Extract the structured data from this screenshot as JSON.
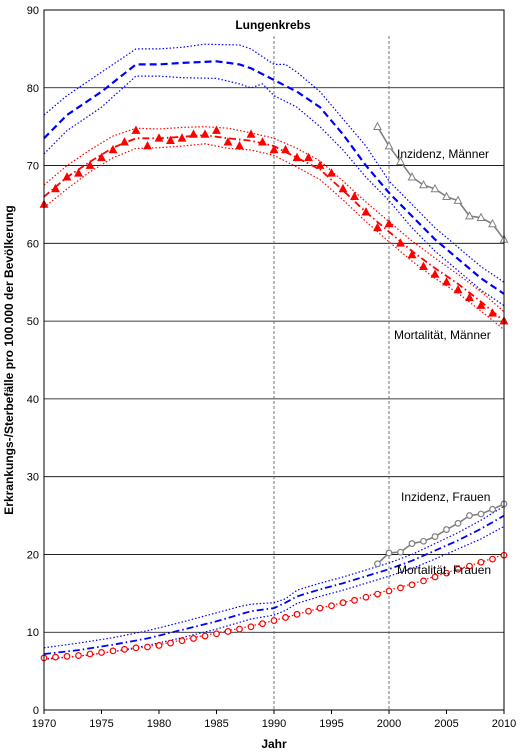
{
  "chart_data": {
    "type": "line",
    "title": "Lungenkrebs",
    "xlabel": "Jahr",
    "ylabel": "Erkrankungs-/Sterbefälle pro 100.000 der Bevölkerung",
    "xlim": [
      1970,
      2010
    ],
    "ylim": [
      0,
      90
    ],
    "xticks": [
      1970,
      1975,
      1980,
      1985,
      1990,
      1995,
      2000,
      2005,
      2010
    ],
    "yticks": [
      0,
      10,
      20,
      30,
      40,
      50,
      60,
      70,
      80,
      90
    ],
    "grid": "horizontal",
    "reference_lines_x": [
      1990,
      2000
    ],
    "annotations": [
      {
        "text": "Inzidenz, Männer"
      },
      {
        "text": "Mortalität, Männer"
      },
      {
        "text": "Inzidenz, Frauen"
      },
      {
        "text": "Mortalität, Frauen"
      }
    ],
    "series": [
      {
        "color": "#0000ff",
        "style": "dashed",
        "role": "trend",
        "x": [
          1970,
          1972,
          1975,
          1978,
          1980,
          1982,
          1985,
          1987,
          1988,
          1990,
          1992,
          1994,
          1996,
          1998,
          2000,
          2002,
          2004,
          2006,
          2008,
          2010
        ],
        "values": [
          73.5,
          76.5,
          79.5,
          83,
          83,
          83.2,
          83.4,
          83,
          82.5,
          81,
          79.5,
          77.5,
          74,
          70,
          66.5,
          63.5,
          60.5,
          58,
          55.5,
          53.5
        ]
      },
      {
        "color": "#0000ff",
        "style": "dotted",
        "role": "upper band",
        "x": [
          1970,
          1972,
          1975,
          1978,
          1980,
          1982,
          1984,
          1987,
          1988,
          1990,
          1991,
          1992,
          1994,
          1996,
          1998,
          2000,
          2002,
          2004,
          2006,
          2008,
          2010
        ],
        "values": [
          76.5,
          79,
          82,
          85,
          85,
          85.2,
          85.6,
          85.5,
          85,
          83,
          83,
          82,
          79.5,
          76,
          72.5,
          68,
          65,
          62,
          59.5,
          57,
          55
        ]
      },
      {
        "color": "#0000ff",
        "style": "dotted",
        "role": "lower band",
        "x": [
          1970,
          1972,
          1975,
          1978,
          1980,
          1982,
          1985,
          1987,
          1988,
          1989,
          1990,
          1992,
          1994,
          1996,
          1998,
          2000,
          2002,
          2004,
          2006,
          2008,
          2010
        ],
        "values": [
          71.5,
          74.5,
          77.5,
          81.5,
          81.5,
          81.3,
          81.2,
          80.5,
          80,
          80.5,
          79,
          77.5,
          75,
          72,
          68.5,
          65.5,
          62,
          59,
          56.5,
          54,
          52
        ]
      },
      {
        "color": "#ff0000",
        "style": "dash-dot",
        "role": "trend",
        "x": [
          1970,
          1972,
          1974,
          1976,
          1978,
          1980,
          1982,
          1984,
          1986,
          1988,
          1990,
          1992,
          1994,
          1996,
          1998,
          2000,
          2002,
          2004,
          2006,
          2008,
          2010
        ],
        "values": [
          66,
          68.5,
          70.5,
          72.3,
          73.5,
          73.5,
          73.7,
          73.9,
          73.5,
          73.2,
          72.5,
          71,
          69.5,
          66.8,
          64,
          61.5,
          59,
          56.8,
          54.8,
          52.5,
          50
        ]
      },
      {
        "color": "#ff0000",
        "style": "dotted",
        "role": "upper band",
        "x": [
          1970,
          1972,
          1974,
          1976,
          1978,
          1980,
          1982,
          1984,
          1986,
          1988,
          1990,
          1992,
          1994,
          1996,
          1998,
          2000,
          2002,
          2004,
          2006,
          2008,
          2010
        ],
        "values": [
          67.5,
          70,
          72,
          73.8,
          74.8,
          74.7,
          74.9,
          75,
          74.8,
          74.2,
          73.5,
          72.2,
          70.6,
          68,
          65.3,
          62.8,
          60.3,
          58.1,
          56,
          53.8,
          51.2
        ]
      },
      {
        "color": "#ff0000",
        "style": "dotted",
        "role": "lower band",
        "x": [
          1970,
          1972,
          1974,
          1976,
          1978,
          1980,
          1982,
          1984,
          1986,
          1988,
          1990,
          1992,
          1994,
          1996,
          1998,
          2000,
          2002,
          2004,
          2006,
          2008,
          2010
        ],
        "values": [
          64.6,
          67,
          69.2,
          71,
          72.2,
          72.3,
          72.5,
          72.8,
          72.2,
          72,
          71.3,
          69.8,
          68.2,
          65.6,
          62.8,
          60.2,
          57.7,
          55.5,
          53.6,
          51.3,
          48.9
        ]
      },
      {
        "color": "#ff0000",
        "style": "markers",
        "marker": "triangle",
        "role": "observed",
        "x": [
          1970,
          1971,
          1972,
          1973,
          1974,
          1975,
          1976,
          1977,
          1978,
          1979,
          1980,
          1981,
          1982,
          1983,
          1984,
          1985,
          1986,
          1987,
          1988,
          1989,
          1990,
          1991,
          1992,
          1993,
          1994,
          1995,
          1996,
          1997,
          1998,
          1999,
          2000,
          2001,
          2002,
          2003,
          2004,
          2005,
          2006,
          2007,
          2008,
          2009,
          2010
        ],
        "values": [
          65,
          67,
          68.5,
          69,
          70,
          71,
          72,
          73,
          74.5,
          72.5,
          73.5,
          73.2,
          73.5,
          74,
          74,
          74.5,
          73,
          72.5,
          74,
          73,
          72,
          72,
          71,
          71,
          70,
          69,
          67,
          66,
          64,
          62,
          62.5,
          60,
          58.5,
          57,
          56,
          55,
          54,
          53,
          52,
          51,
          50
        ]
      },
      {
        "color": "#808080",
        "style": "solid",
        "marker": "triangle-open",
        "role": "observed",
        "x": [
          1999,
          2000,
          2001,
          2002,
          2003,
          2004,
          2005,
          2006,
          2007,
          2008,
          2009,
          2010
        ],
        "values": [
          75,
          72.5,
          70.5,
          68.5,
          67.5,
          67,
          66,
          65.5,
          63.5,
          63.3,
          62.5,
          60.5
        ]
      },
      {
        "color": "#0000ff",
        "style": "dash-dot",
        "role": "trend",
        "x": [
          1970,
          1973,
          1976,
          1979,
          1982,
          1985,
          1988,
          1990,
          1991,
          1992,
          1994,
          1996,
          1998,
          2000,
          2002,
          2004,
          2006,
          2008,
          2010
        ],
        "values": [
          7.2,
          7.7,
          8.4,
          9.2,
          10.3,
          11.4,
          12.7,
          13.1,
          13.8,
          14.6,
          15.5,
          16.3,
          17.2,
          18.1,
          19.2,
          20.5,
          21.8,
          23.3,
          25
        ]
      },
      {
        "color": "#0000ff",
        "style": "dotted",
        "role": "upper band",
        "x": [
          1970,
          1973,
          1976,
          1979,
          1982,
          1985,
          1987,
          1988,
          1990,
          1991,
          1992,
          1994,
          1996,
          1998,
          2000,
          2002,
          2004,
          2006,
          2008,
          2010
        ],
        "values": [
          8,
          8.6,
          9.3,
          10.2,
          11.3,
          12.5,
          13.3,
          13.6,
          13.8,
          14.3,
          15.4,
          16.3,
          17.1,
          18,
          18.9,
          20,
          21.4,
          22.8,
          24.4,
          26.2
        ]
      },
      {
        "color": "#0000ff",
        "style": "dotted",
        "role": "lower band",
        "x": [
          1970,
          1973,
          1976,
          1979,
          1982,
          1985,
          1988,
          1990,
          1991,
          1992,
          1994,
          1996,
          1998,
          2000,
          2002,
          2004,
          2006,
          2008,
          2010
        ],
        "values": [
          6.5,
          6.9,
          7.5,
          8.3,
          9.3,
          10.4,
          11.7,
          12.2,
          12.8,
          13.7,
          14.6,
          15.4,
          16.3,
          17.2,
          18.2,
          19.4,
          20.7,
          22,
          23.6
        ]
      },
      {
        "color": "#ff0000",
        "style": "dotted",
        "role": "trend",
        "x": [
          1970,
          1972,
          1974,
          1976,
          1978,
          1980,
          1982,
          1984,
          1986,
          1988,
          1990,
          1992,
          1994,
          1996,
          1998,
          2000,
          2002,
          2004,
          2006,
          2008,
          2010
        ],
        "values": [
          6.6,
          6.8,
          7.1,
          7.5,
          7.9,
          8.4,
          9,
          9.6,
          10.2,
          10.8,
          11.5,
          12.3,
          13.1,
          13.8,
          14.6,
          15.4,
          16.2,
          17.2,
          18.1,
          19,
          20
        ]
      },
      {
        "color": "#ff0000",
        "style": "markers",
        "marker": "circle-open",
        "role": "observed",
        "x": [
          1970,
          1971,
          1972,
          1973,
          1974,
          1975,
          1976,
          1977,
          1978,
          1979,
          1980,
          1981,
          1982,
          1983,
          1984,
          1985,
          1986,
          1987,
          1988,
          1989,
          1990,
          1991,
          1992,
          1993,
          1994,
          1995,
          1996,
          1997,
          1998,
          1999,
          2000,
          2001,
          2002,
          2003,
          2004,
          2005,
          2006,
          2007,
          2008,
          2009,
          2010
        ],
        "values": [
          6.7,
          6.8,
          6.9,
          7,
          7.2,
          7.4,
          7.6,
          7.8,
          8,
          8.1,
          8.3,
          8.6,
          8.9,
          9.2,
          9.5,
          9.8,
          10.1,
          10.4,
          10.7,
          11.1,
          11.5,
          11.9,
          12.3,
          12.7,
          13.1,
          13.4,
          13.8,
          14.1,
          14.5,
          14.9,
          15.3,
          15.7,
          16.1,
          16.6,
          17.1,
          17.6,
          18.1,
          18.5,
          19,
          19.4,
          19.9
        ]
      },
      {
        "color": "#808080",
        "style": "solid",
        "marker": "circle-open",
        "role": "observed",
        "x": [
          1999,
          2000,
          2001,
          2002,
          2003,
          2004,
          2005,
          2006,
          2007,
          2008,
          2009,
          2010
        ],
        "values": [
          18.8,
          20.2,
          20.3,
          21.4,
          21.7,
          22.3,
          23.2,
          24,
          25,
          25.2,
          25.8,
          26.5
        ]
      }
    ]
  }
}
